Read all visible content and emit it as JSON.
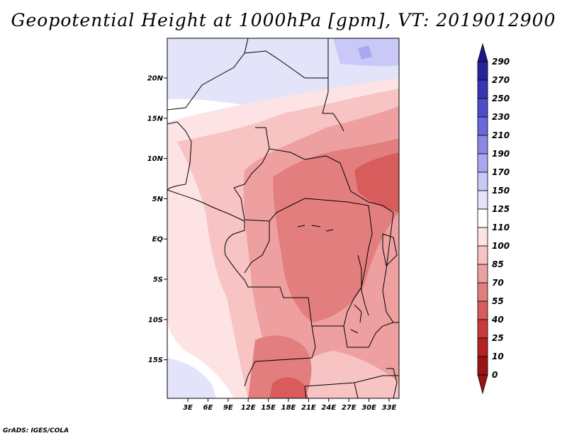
{
  "title": "Geopotential Height at 1000hPa [gpm], VT: 2019012900",
  "credit": "GrADS: IGES/COLA",
  "map": {
    "variable": "Geopotential Height at 1000hPa",
    "units": "gpm",
    "valid_time": "2019012900",
    "region": "Central Africa",
    "lon_ticks": [
      "3E",
      "6E",
      "9E",
      "12E",
      "15E",
      "18E",
      "21E",
      "24E",
      "27E",
      "30E",
      "33E"
    ],
    "lat_ticks": [
      "20N",
      "15N",
      "10N",
      "5N",
      "EQ",
      "5S",
      "10S",
      "15S"
    ]
  },
  "colorbar": {
    "levels": [
      "290",
      "270",
      "250",
      "230",
      "210",
      "190",
      "170",
      "150",
      "125",
      "110",
      "100",
      "85",
      "70",
      "55",
      "40",
      "25",
      "10",
      "0"
    ],
    "colors": [
      "#1c1a8a",
      "#27239c",
      "#3a35b4",
      "#4e4cc8",
      "#6a68da",
      "#8c88e8",
      "#aaa8f0",
      "#c9c8f7",
      "#e3e3fa",
      "#ffffff",
      "#fde3e3",
      "#f7c3c3",
      "#eea0a0",
      "#e37e7e",
      "#d85c5c",
      "#ca3b3b",
      "#b52222",
      "#9a1414"
    ]
  }
}
